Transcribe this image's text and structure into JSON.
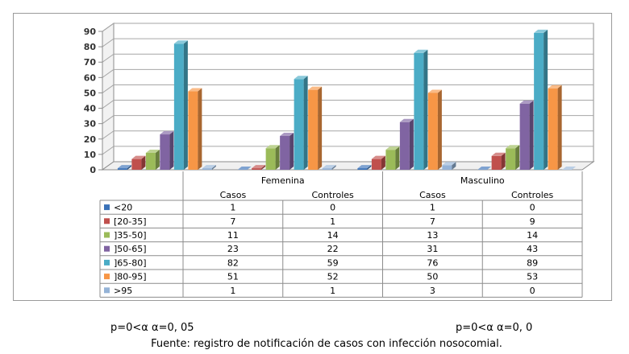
{
  "chart_data": {
    "type": "bar",
    "style": "3d-clustered-column-with-data-table",
    "title": "",
    "xlabel": "",
    "ylabel": "",
    "ylim": [
      0,
      90
    ],
    "yticks": [
      0,
      10,
      20,
      30,
      40,
      50,
      60,
      70,
      80,
      90
    ],
    "grid": true,
    "groups": [
      {
        "name": "Femenina",
        "categories": [
          "Casos",
          "Controles"
        ]
      },
      {
        "name": "Masculino",
        "categories": [
          "Casos",
          "Controles"
        ]
      }
    ],
    "categories": [
      "Casos",
      "Controles",
      "Casos",
      "Controles"
    ],
    "series": [
      {
        "name": "<20",
        "color": "#3a72b8",
        "values": [
          1,
          0,
          1,
          0
        ]
      },
      {
        "name": "[20-35]",
        "color": "#c0504d",
        "values": [
          7,
          1,
          7,
          9
        ]
      },
      {
        "name": "]35-50]",
        "color": "#9bbb59",
        "values": [
          11,
          14,
          13,
          14
        ]
      },
      {
        "name": "]50-65]",
        "color": "#8064a2",
        "values": [
          23,
          22,
          31,
          43
        ]
      },
      {
        "name": "]65-80]",
        "color": "#4bacc6",
        "values": [
          82,
          59,
          76,
          89
        ]
      },
      {
        "name": "]80-95]",
        "color": "#f79646",
        "values": [
          51,
          52,
          50,
          53
        ]
      },
      {
        "name": ">95",
        "color": "#95b3d7",
        "values": [
          1,
          1,
          3,
          0
        ]
      }
    ]
  },
  "footnotes": {
    "left": "p=0<α α=0, 05",
    "right": "p=0<α α=0, 0",
    "source": "Fuente: registro de notificación de casos con infección nosocomial."
  }
}
